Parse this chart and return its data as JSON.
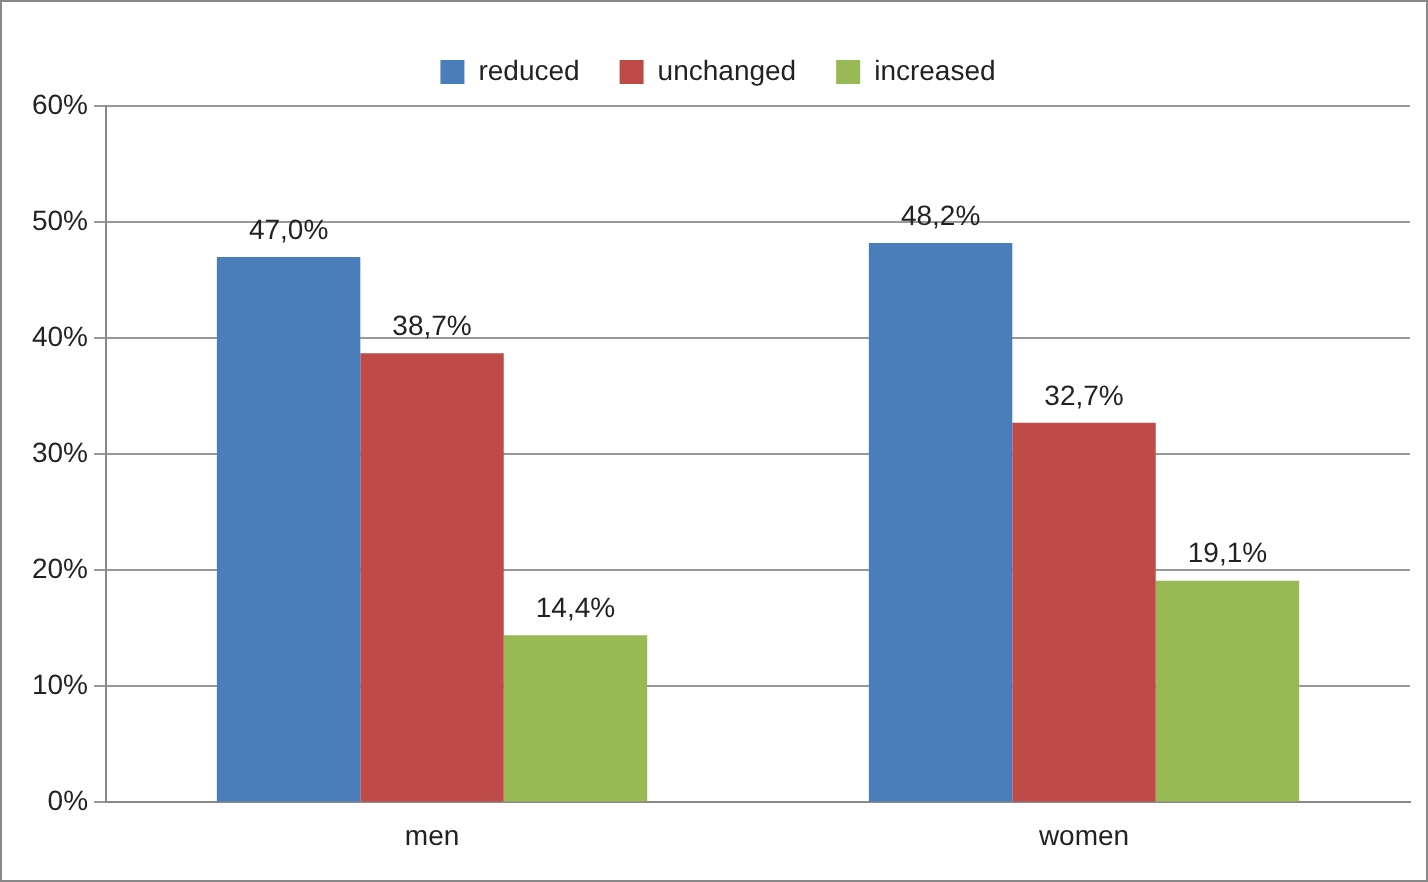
{
  "chart_data": {
    "type": "bar",
    "categories": [
      "men",
      "women"
    ],
    "series": [
      {
        "name": "reduced",
        "color": "#4a7ebb",
        "values": [
          47.0,
          48.2
        ],
        "value_labels": [
          "47,0%",
          "48,2%"
        ]
      },
      {
        "name": "unchanged",
        "color": "#be4b48",
        "values": [
          38.7,
          32.7
        ],
        "value_labels": [
          "38,7%",
          "32,7%"
        ]
      },
      {
        "name": "increased",
        "color": "#98b954",
        "values": [
          14.4,
          19.1
        ],
        "value_labels": [
          "14,4%",
          "19,1%"
        ]
      }
    ],
    "ylim": [
      0,
      60
    ],
    "yticks": [
      {
        "value": 0,
        "label": "0%"
      },
      {
        "value": 10,
        "label": "10%"
      },
      {
        "value": 20,
        "label": "20%"
      },
      {
        "value": 30,
        "label": "30%"
      },
      {
        "value": 40,
        "label": "40%"
      },
      {
        "value": 50,
        "label": "50%"
      },
      {
        "value": 60,
        "label": "60%"
      }
    ],
    "grid": "y",
    "legend": "top"
  }
}
